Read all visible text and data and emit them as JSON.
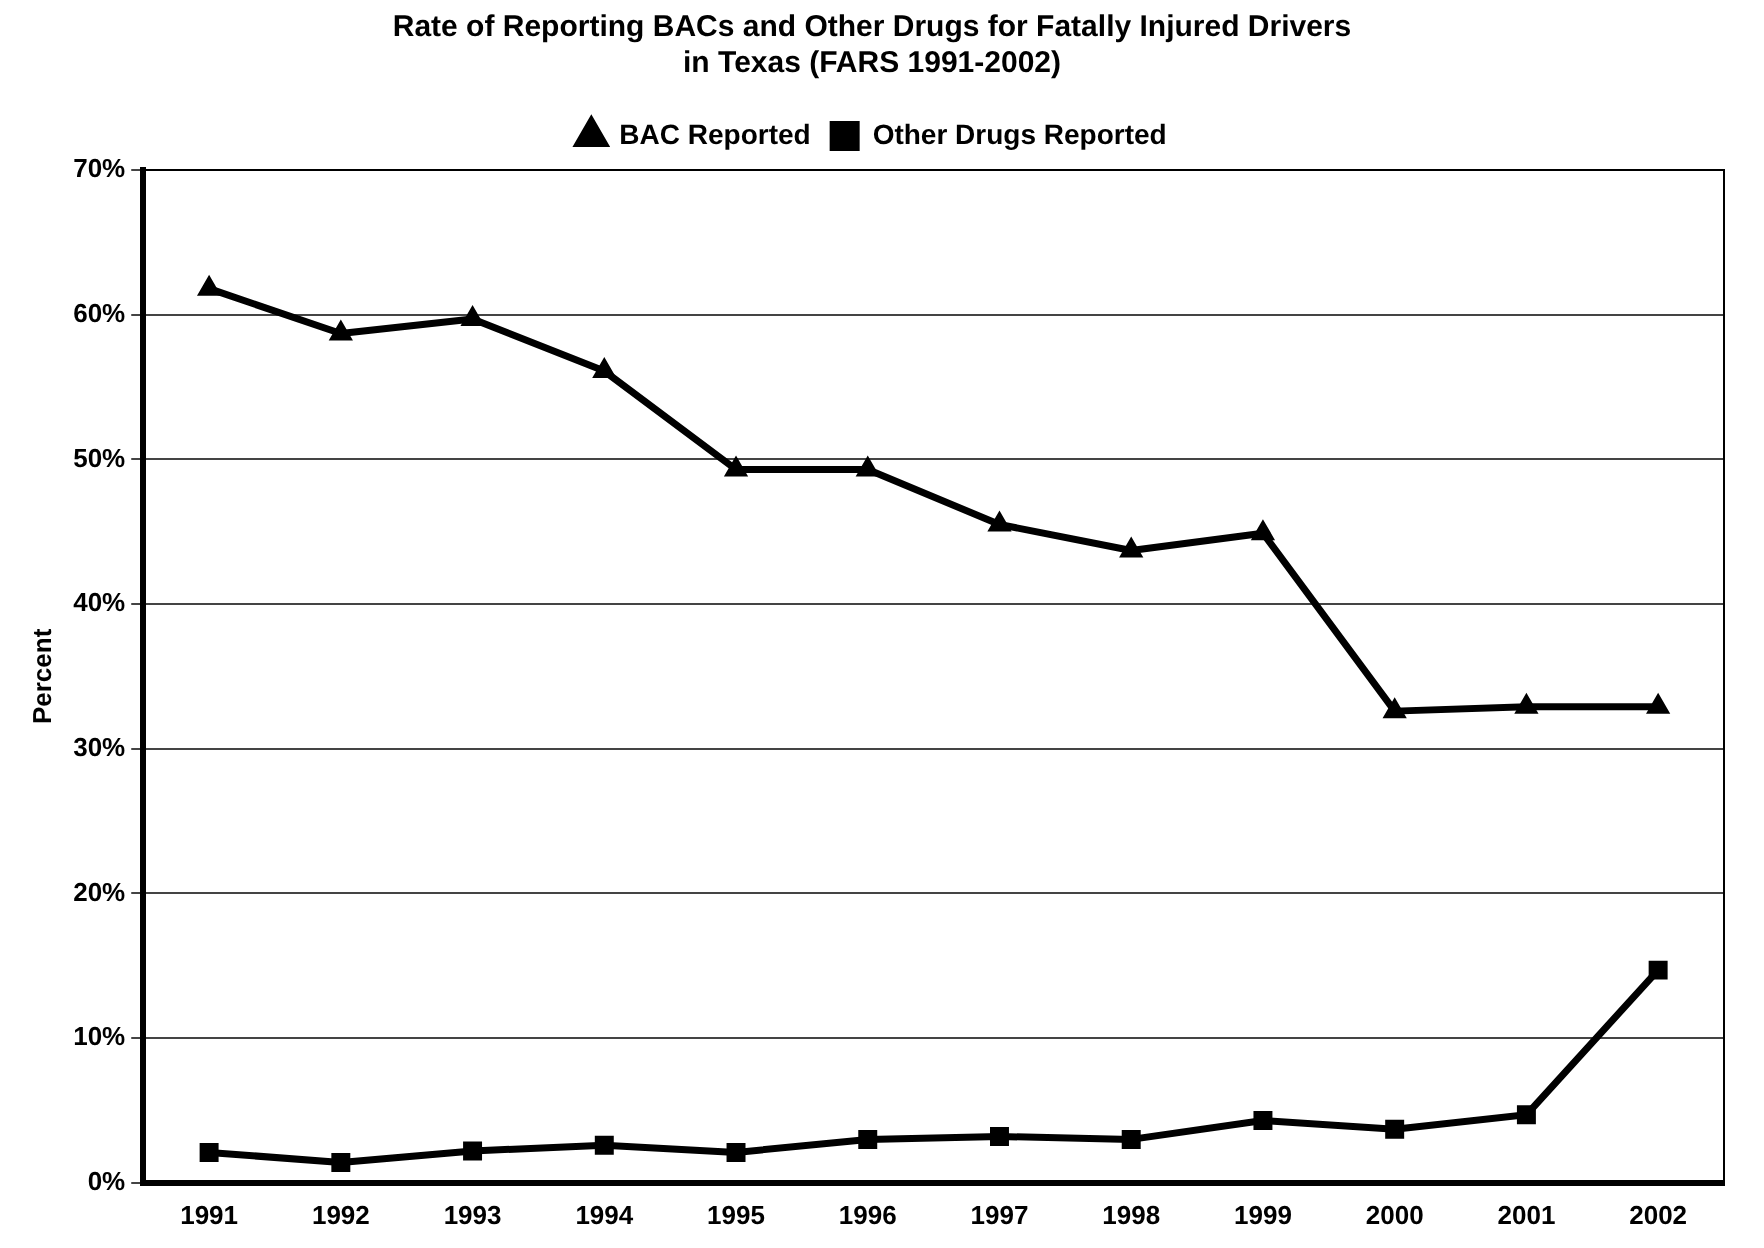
{
  "chart_data": {
    "type": "line",
    "title": "Rate of Reporting BACs and Other Drugs for Fatally Injured Drivers\nin Texas (FARS 1991-2002)",
    "ylabel": "Percent",
    "categories": [
      "1991",
      "1992",
      "1993",
      "1994",
      "1995",
      "1996",
      "1997",
      "1998",
      "1999",
      "2000",
      "2001",
      "2002"
    ],
    "series": [
      {
        "name": "BAC Reported",
        "color": "#000000",
        "marker": "triangle",
        "values": [
          61.8,
          58.7,
          59.7,
          56.1,
          49.3,
          49.3,
          45.5,
          43.7,
          44.9,
          32.6,
          32.9,
          32.9
        ]
      },
      {
        "name": "Other Drugs Reported",
        "color": "#000000",
        "marker": "square",
        "values": [
          2.1,
          1.4,
          2.2,
          2.6,
          2.1,
          3.0,
          3.2,
          3.0,
          4.3,
          3.7,
          4.7,
          14.7
        ]
      }
    ],
    "ylim": [
      0,
      70
    ],
    "yticks": [
      {
        "value": 0,
        "label": "0%"
      },
      {
        "value": 10,
        "label": "10%"
      },
      {
        "value": 20,
        "label": "20%"
      },
      {
        "value": 30,
        "label": "30%"
      },
      {
        "value": 40,
        "label": "40%"
      },
      {
        "value": 50,
        "label": "50%"
      },
      {
        "value": 60,
        "label": "60%"
      },
      {
        "value": 70,
        "label": "70%"
      }
    ],
    "grid": "y",
    "legend": "top",
    "line_style": "solid"
  }
}
